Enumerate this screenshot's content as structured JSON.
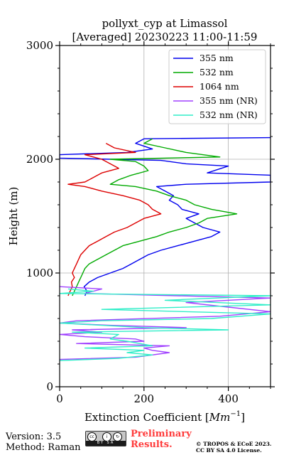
{
  "chart_data": {
    "type": "line",
    "title": "pollyxt_cyp at Limassol",
    "subtitle": "[Averaged] 20230223 11:00-11:59",
    "xlabel": "Extinction Coefficient [",
    "xlabel_unit": "Mm",
    "xlabel_exp": "−1",
    "xlabel_close": "]",
    "ylabel": "Height (m)",
    "xlim": [
      0,
      500
    ],
    "ylim": [
      0,
      3000
    ],
    "xticks": [
      0,
      200,
      400
    ],
    "yticks": [
      0,
      1000,
      2000,
      3000
    ],
    "grid": true,
    "legend_position": "top-right",
    "series": [
      {
        "name": "355 nm",
        "color": "#0000ee",
        "points": [
          [
            60,
            800
          ],
          [
            65,
            840
          ],
          [
            58,
            880
          ],
          [
            70,
            920
          ],
          [
            90,
            960
          ],
          [
            120,
            1000
          ],
          [
            150,
            1040
          ],
          [
            170,
            1080
          ],
          [
            190,
            1120
          ],
          [
            210,
            1160
          ],
          [
            240,
            1200
          ],
          [
            280,
            1240
          ],
          [
            320,
            1280
          ],
          [
            360,
            1320
          ],
          [
            380,
            1360
          ],
          [
            340,
            1400
          ],
          [
            320,
            1440
          ],
          [
            300,
            1480
          ],
          [
            330,
            1520
          ],
          [
            290,
            1560
          ],
          [
            280,
            1600
          ],
          [
            260,
            1640
          ],
          [
            270,
            1680
          ],
          [
            250,
            1720
          ],
          [
            230,
            1760
          ],
          [
            300,
            1780
          ],
          [
            500,
            1800
          ],
          [
            500,
            1840
          ],
          [
            500,
            1860
          ],
          [
            350,
            1880
          ],
          [
            400,
            1940
          ],
          [
            300,
            1960
          ],
          [
            240,
            1990
          ],
          [
            0,
            2010
          ],
          [
            0,
            2040
          ],
          [
            160,
            2060
          ],
          [
            220,
            2090
          ],
          [
            180,
            2140
          ],
          [
            200,
            2180
          ],
          [
            500,
            2190
          ]
        ]
      },
      {
        "name": "532 nm",
        "color": "#00aa00",
        "points": [
          [
            30,
            800
          ],
          [
            35,
            840
          ],
          [
            40,
            880
          ],
          [
            45,
            920
          ],
          [
            50,
            960
          ],
          [
            55,
            1000
          ],
          [
            60,
            1040
          ],
          [
            70,
            1080
          ],
          [
            90,
            1120
          ],
          [
            110,
            1160
          ],
          [
            130,
            1200
          ],
          [
            150,
            1240
          ],
          [
            190,
            1280
          ],
          [
            230,
            1320
          ],
          [
            260,
            1360
          ],
          [
            300,
            1400
          ],
          [
            330,
            1440
          ],
          [
            350,
            1480
          ],
          [
            420,
            1520
          ],
          [
            360,
            1560
          ],
          [
            320,
            1600
          ],
          [
            300,
            1640
          ],
          [
            260,
            1680
          ],
          [
            230,
            1720
          ],
          [
            180,
            1760
          ],
          [
            120,
            1780
          ],
          [
            140,
            1820
          ],
          [
            170,
            1860
          ],
          [
            210,
            1900
          ],
          [
            200,
            1940
          ],
          [
            180,
            1980
          ],
          [
            120,
            2000
          ],
          [
            380,
            2020
          ],
          [
            300,
            2060
          ],
          [
            250,
            2100
          ],
          [
            200,
            2140
          ],
          [
            220,
            2180
          ]
        ]
      },
      {
        "name": "1064 nm",
        "color": "#dd0000",
        "points": [
          [
            20,
            800
          ],
          [
            25,
            840
          ],
          [
            30,
            880
          ],
          [
            28,
            920
          ],
          [
            35,
            960
          ],
          [
            30,
            1000
          ],
          [
            35,
            1040
          ],
          [
            40,
            1080
          ],
          [
            45,
            1120
          ],
          [
            50,
            1160
          ],
          [
            60,
            1200
          ],
          [
            70,
            1240
          ],
          [
            90,
            1280
          ],
          [
            110,
            1320
          ],
          [
            130,
            1360
          ],
          [
            160,
            1400
          ],
          [
            180,
            1440
          ],
          [
            200,
            1480
          ],
          [
            240,
            1520
          ],
          [
            220,
            1560
          ],
          [
            210,
            1600
          ],
          [
            190,
            1640
          ],
          [
            150,
            1680
          ],
          [
            100,
            1720
          ],
          [
            60,
            1760
          ],
          [
            20,
            1780
          ],
          [
            60,
            1800
          ],
          [
            80,
            1840
          ],
          [
            100,
            1880
          ],
          [
            140,
            1920
          ],
          [
            120,
            1960
          ],
          [
            100,
            2000
          ],
          [
            60,
            2040
          ],
          [
            180,
            2060
          ],
          [
            130,
            2100
          ],
          [
            110,
            2140
          ]
        ]
      },
      {
        "name": "355 nm (NR)",
        "color": "#a040ff",
        "points": [
          [
            0,
            240
          ],
          [
            180,
            260
          ],
          [
            260,
            300
          ],
          [
            220,
            320
          ],
          [
            200,
            340
          ],
          [
            260,
            360
          ],
          [
            40,
            380
          ],
          [
            200,
            400
          ],
          [
            180,
            420
          ],
          [
            60,
            440
          ],
          [
            0,
            460
          ],
          [
            100,
            480
          ],
          [
            30,
            500
          ],
          [
            300,
            520
          ],
          [
            120,
            540
          ],
          [
            0,
            560
          ],
          [
            40,
            580
          ],
          [
            380,
            620
          ],
          [
            500,
            660
          ],
          [
            400,
            700
          ],
          [
            300,
            740
          ],
          [
            500,
            780
          ],
          [
            60,
            820
          ],
          [
            100,
            860
          ],
          [
            0,
            880
          ]
        ]
      },
      {
        "name": "532 nm (NR)",
        "color": "#30eec8",
        "points": [
          [
            0,
            230
          ],
          [
            140,
            250
          ],
          [
            220,
            280
          ],
          [
            160,
            300
          ],
          [
            200,
            320
          ],
          [
            60,
            340
          ],
          [
            220,
            360
          ],
          [
            160,
            400
          ],
          [
            120,
            420
          ],
          [
            140,
            460
          ],
          [
            30,
            480
          ],
          [
            400,
            500
          ],
          [
            200,
            520
          ],
          [
            0,
            560
          ],
          [
            100,
            580
          ],
          [
            360,
            600
          ],
          [
            500,
            640
          ],
          [
            100,
            680
          ],
          [
            500,
            720
          ],
          [
            250,
            760
          ],
          [
            500,
            800
          ],
          [
            0,
            820
          ],
          [
            80,
            840
          ],
          [
            20,
            860
          ]
        ]
      }
    ]
  },
  "footer": {
    "version": "Version: 3.5",
    "method": "Method: Raman",
    "license_badge": "BY SA",
    "preliminary_1": "Preliminary",
    "preliminary_2": "Results.",
    "copyright_1": "© TROPOS & ECoE 2023.",
    "copyright_2": "CC BY SA 4.0 License."
  },
  "colors": {
    "frame": "#000000",
    "grid": "#b0b0b0",
    "preliminary_text": "#ff3b3b"
  }
}
